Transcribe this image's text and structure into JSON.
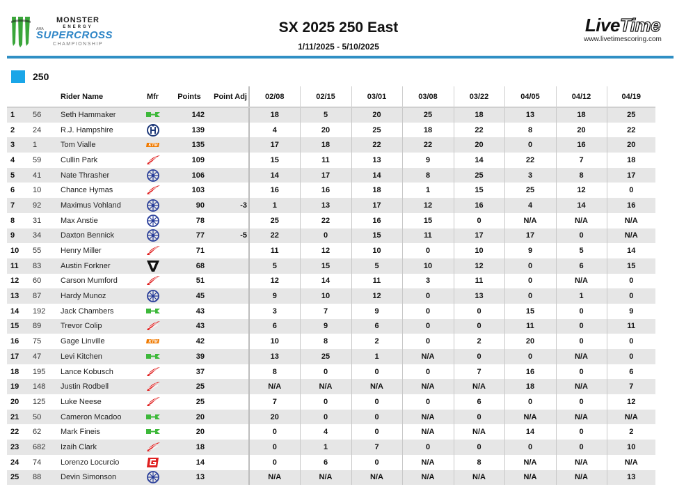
{
  "header": {
    "title": "SX 2025 250 East",
    "dates": "1/11/2025 - 5/10/2025",
    "left_logo": {
      "brand": "MONSTER",
      "energy": "ENERGY",
      "ama": "AMA",
      "supercross": "SUPERCROSS",
      "championship": "CHAMPIONSHIP"
    },
    "right_logo": {
      "brand_live": "Live",
      "brand_time": "Time",
      "url": "www.livetimescoring.com"
    },
    "rule_color": "#2f8fc4"
  },
  "class": {
    "label": "250",
    "color": "#1aa6e8"
  },
  "table": {
    "columns": [
      "",
      "",
      "Rider Name",
      "Mfr",
      "Points",
      "Point Adj",
      "02/08",
      "02/15",
      "03/01",
      "03/08",
      "03/22",
      "04/05",
      "04/12",
      "04/19"
    ],
    "rows": [
      {
        "pos": "1",
        "num": "56",
        "name": "Seth Hammaker",
        "mfr": "kawasaki",
        "points": "142",
        "adj": "",
        "races": [
          "18",
          "5",
          "20",
          "25",
          "18",
          "13",
          "18",
          "25"
        ]
      },
      {
        "pos": "2",
        "num": "24",
        "name": "R.J. Hampshire",
        "mfr": "husqvarna",
        "points": "139",
        "adj": "",
        "races": [
          "4",
          "20",
          "25",
          "18",
          "22",
          "8",
          "20",
          "22"
        ]
      },
      {
        "pos": "3",
        "num": "1",
        "name": "Tom Vialle",
        "mfr": "ktm",
        "points": "135",
        "adj": "",
        "races": [
          "17",
          "18",
          "22",
          "22",
          "20",
          "0",
          "16",
          "20"
        ]
      },
      {
        "pos": "4",
        "num": "59",
        "name": "Cullin Park",
        "mfr": "honda",
        "points": "109",
        "adj": "",
        "races": [
          "15",
          "11",
          "13",
          "9",
          "14",
          "22",
          "7",
          "18"
        ]
      },
      {
        "pos": "5",
        "num": "41",
        "name": "Nate Thrasher",
        "mfr": "yamaha",
        "points": "106",
        "adj": "",
        "races": [
          "14",
          "17",
          "14",
          "8",
          "25",
          "3",
          "8",
          "17"
        ]
      },
      {
        "pos": "6",
        "num": "10",
        "name": "Chance Hymas",
        "mfr": "honda",
        "points": "103",
        "adj": "",
        "races": [
          "16",
          "16",
          "18",
          "1",
          "15",
          "25",
          "12",
          "0"
        ]
      },
      {
        "pos": "7",
        "num": "92",
        "name": "Maximus Vohland",
        "mfr": "yamaha",
        "points": "90",
        "adj": "-3",
        "races": [
          "1",
          "13",
          "17",
          "12",
          "16",
          "4",
          "14",
          "16"
        ]
      },
      {
        "pos": "8",
        "num": "31",
        "name": "Max Anstie",
        "mfr": "yamaha",
        "points": "78",
        "adj": "",
        "races": [
          "25",
          "22",
          "16",
          "15",
          "0",
          "N/A",
          "N/A",
          "N/A"
        ]
      },
      {
        "pos": "9",
        "num": "34",
        "name": "Daxton Bennick",
        "mfr": "yamaha",
        "points": "77",
        "adj": "-5",
        "races": [
          "22",
          "0",
          "15",
          "11",
          "17",
          "17",
          "0",
          "N/A"
        ]
      },
      {
        "pos": "10",
        "num": "55",
        "name": "Henry Miller",
        "mfr": "honda",
        "points": "71",
        "adj": "",
        "races": [
          "11",
          "12",
          "10",
          "0",
          "10",
          "9",
          "5",
          "14"
        ]
      },
      {
        "pos": "11",
        "num": "83",
        "name": "Austin Forkner",
        "mfr": "triumph",
        "points": "68",
        "adj": "",
        "races": [
          "5",
          "15",
          "5",
          "10",
          "12",
          "0",
          "6",
          "15"
        ]
      },
      {
        "pos": "12",
        "num": "60",
        "name": "Carson Mumford",
        "mfr": "honda",
        "points": "51",
        "adj": "",
        "races": [
          "12",
          "14",
          "11",
          "3",
          "11",
          "0",
          "N/A",
          "0"
        ]
      },
      {
        "pos": "13",
        "num": "87",
        "name": "Hardy Munoz",
        "mfr": "yamaha",
        "points": "45",
        "adj": "",
        "races": [
          "9",
          "10",
          "12",
          "0",
          "13",
          "0",
          "1",
          "0"
        ]
      },
      {
        "pos": "14",
        "num": "192",
        "name": "Jack Chambers",
        "mfr": "kawasaki",
        "points": "43",
        "adj": "",
        "races": [
          "3",
          "7",
          "9",
          "0",
          "0",
          "15",
          "0",
          "9"
        ]
      },
      {
        "pos": "15",
        "num": "89",
        "name": "Trevor Colip",
        "mfr": "honda",
        "points": "43",
        "adj": "",
        "races": [
          "6",
          "9",
          "6",
          "0",
          "0",
          "11",
          "0",
          "11"
        ]
      },
      {
        "pos": "16",
        "num": "75",
        "name": "Gage Linville",
        "mfr": "ktm",
        "points": "42",
        "adj": "",
        "races": [
          "10",
          "8",
          "2",
          "0",
          "2",
          "20",
          "0",
          "0"
        ]
      },
      {
        "pos": "17",
        "num": "47",
        "name": "Levi Kitchen",
        "mfr": "kawasaki",
        "points": "39",
        "adj": "",
        "races": [
          "13",
          "25",
          "1",
          "N/A",
          "0",
          "0",
          "N/A",
          "0"
        ]
      },
      {
        "pos": "18",
        "num": "195",
        "name": "Lance Kobusch",
        "mfr": "honda",
        "points": "37",
        "adj": "",
        "races": [
          "8",
          "0",
          "0",
          "0",
          "7",
          "16",
          "0",
          "6"
        ]
      },
      {
        "pos": "19",
        "num": "148",
        "name": "Justin Rodbell",
        "mfr": "honda",
        "points": "25",
        "adj": "",
        "races": [
          "N/A",
          "N/A",
          "N/A",
          "N/A",
          "N/A",
          "18",
          "N/A",
          "7"
        ]
      },
      {
        "pos": "20",
        "num": "125",
        "name": "Luke Neese",
        "mfr": "honda",
        "points": "25",
        "adj": "",
        "races": [
          "7",
          "0",
          "0",
          "0",
          "6",
          "0",
          "0",
          "12"
        ]
      },
      {
        "pos": "21",
        "num": "50",
        "name": "Cameron Mcadoo",
        "mfr": "kawasaki",
        "points": "20",
        "adj": "",
        "races": [
          "20",
          "0",
          "0",
          "N/A",
          "0",
          "N/A",
          "N/A",
          "N/A"
        ]
      },
      {
        "pos": "22",
        "num": "62",
        "name": "Mark Fineis",
        "mfr": "kawasaki",
        "points": "20",
        "adj": "",
        "races": [
          "0",
          "4",
          "0",
          "N/A",
          "N/A",
          "14",
          "0",
          "2"
        ]
      },
      {
        "pos": "23",
        "num": "682",
        "name": "Izaih Clark",
        "mfr": "honda",
        "points": "18",
        "adj": "",
        "races": [
          "0",
          "1",
          "7",
          "0",
          "0",
          "0",
          "0",
          "10"
        ]
      },
      {
        "pos": "24",
        "num": "74",
        "name": "Lorenzo Locurcio",
        "mfr": "gasgas",
        "points": "14",
        "adj": "",
        "races": [
          "0",
          "6",
          "0",
          "N/A",
          "8",
          "N/A",
          "N/A",
          "N/A"
        ]
      },
      {
        "pos": "25",
        "num": "88",
        "name": "Devin Simonson",
        "mfr": "yamaha",
        "points": "13",
        "adj": "",
        "races": [
          "N/A",
          "N/A",
          "N/A",
          "N/A",
          "N/A",
          "N/A",
          "N/A",
          "13"
        ]
      }
    ]
  },
  "mfr_colors": {
    "kawasaki": "#3db83a",
    "husqvarna": "#1f3a7a",
    "ktm": "#f07a00",
    "honda": "#e02020",
    "yamaha": "#2a3f9a",
    "triumph": "#111111",
    "gasgas": "#e02020"
  }
}
